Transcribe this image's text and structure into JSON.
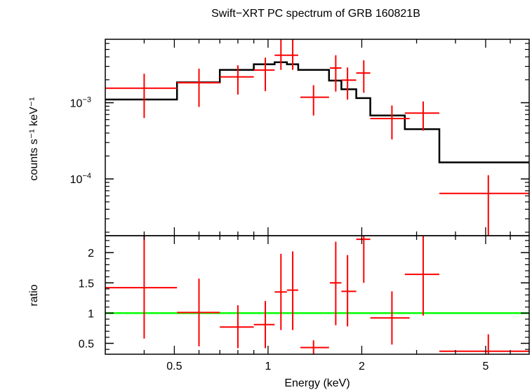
{
  "chart_data": [
    {
      "type": "scatter",
      "title": "Swift−XRT PC spectrum of GRB 160821B",
      "ylabel": "counts s⁻¹ keV⁻¹",
      "y_scale": "log",
      "x_scale": "log",
      "xlim": [
        0.3,
        6.9
      ],
      "ylim": [
        1.8e-05,
        0.0068
      ],
      "y_ticks": [
        {
          "value": 0.001,
          "base": "10",
          "exp": "−3"
        },
        {
          "value": 0.0001,
          "base": "10",
          "exp": "−4"
        }
      ],
      "grid": false,
      "series": [
        {
          "kind": "data",
          "color": "#ff0000",
          "points": [
            {
              "xlo": 0.3,
              "xhi": 0.51,
              "x": 0.4,
              "y": 0.00155,
              "ylo": 0.00063,
              "yhi": 0.0024
            },
            {
              "xlo": 0.51,
              "xhi": 0.7,
              "x": 0.6,
              "y": 0.00183,
              "ylo": 0.00088,
              "yhi": 0.0028
            },
            {
              "xlo": 0.7,
              "xhi": 0.9,
              "x": 0.8,
              "y": 0.00218,
              "ylo": 0.00128,
              "yhi": 0.0031
            },
            {
              "xlo": 0.9,
              "xhi": 1.05,
              "x": 0.98,
              "y": 0.00268,
              "ylo": 0.00142,
              "yhi": 0.0039
            },
            {
              "xlo": 1.05,
              "xhi": 1.15,
              "x": 1.1,
              "y": 0.0042,
              "ylo": 0.0027,
              "yhi": 0.0068
            },
            {
              "xlo": 1.15,
              "xhi": 1.25,
              "x": 1.2,
              "y": 0.0042,
              "ylo": 0.0027,
              "yhi": 0.0068
            },
            {
              "xlo": 1.27,
              "xhi": 1.57,
              "x": 1.4,
              "y": 0.00118,
              "ylo": 0.00068,
              "yhi": 0.0017
            },
            {
              "xlo": 1.58,
              "xhi": 1.72,
              "x": 1.65,
              "y": 0.00285,
              "ylo": 0.0014,
              "yhi": 0.0042
            },
            {
              "xlo": 1.72,
              "xhi": 1.92,
              "x": 1.8,
              "y": 0.00198,
              "ylo": 0.0011,
              "yhi": 0.0029
            },
            {
              "xlo": 1.92,
              "xhi": 2.13,
              "x": 2.03,
              "y": 0.00245,
              "ylo": 0.00135,
              "yhi": 0.0036
            },
            {
              "xlo": 2.13,
              "xhi": 2.85,
              "x": 2.5,
              "y": 0.00062,
              "ylo": 0.00033,
              "yhi": 0.00092
            },
            {
              "xlo": 2.75,
              "xhi": 3.55,
              "x": 3.15,
              "y": 0.00073,
              "ylo": 0.00043,
              "yhi": 0.00104
            },
            {
              "xlo": 3.55,
              "xhi": 6.9,
              "x": 5.1,
              "y": 6.45e-05,
              "ylo": 1.8e-05,
              "yhi": 0.000112
            }
          ]
        },
        {
          "kind": "model",
          "color": "#000000",
          "steps": [
            {
              "xlo": 0.3,
              "xhi": 0.51,
              "y": 0.0011
            },
            {
              "xlo": 0.51,
              "xhi": 0.7,
              "y": 0.00185
            },
            {
              "xlo": 0.7,
              "xhi": 0.9,
              "y": 0.0027
            },
            {
              "xlo": 0.9,
              "xhi": 1.05,
              "y": 0.0032
            },
            {
              "xlo": 1.05,
              "xhi": 1.15,
              "y": 0.0034
            },
            {
              "xlo": 1.15,
              "xhi": 1.25,
              "y": 0.0032
            },
            {
              "xlo": 1.25,
              "xhi": 1.57,
              "y": 0.0027
            },
            {
              "xlo": 1.57,
              "xhi": 1.72,
              "y": 0.00195
            },
            {
              "xlo": 1.72,
              "xhi": 1.92,
              "y": 0.0015
            },
            {
              "xlo": 1.92,
              "xhi": 2.13,
              "y": 0.00115
            },
            {
              "xlo": 2.13,
              "xhi": 2.75,
              "y": 0.00068
            },
            {
              "xlo": 2.75,
              "xhi": 3.55,
              "y": 0.00045
            },
            {
              "xlo": 3.55,
              "xhi": 6.9,
              "y": 0.000165
            }
          ]
        }
      ]
    },
    {
      "type": "scatter",
      "xlabel": "Energy (keV)",
      "ylabel": "ratio",
      "x_scale": "log",
      "xlim": [
        0.3,
        6.9
      ],
      "ylim": [
        0.32,
        2.28
      ],
      "x_ticks": [
        {
          "value": 0.5,
          "label": "0.5"
        },
        {
          "value": 1,
          "label": "1"
        },
        {
          "value": 2,
          "label": "2"
        },
        {
          "value": 5,
          "label": "5"
        }
      ],
      "y_ticks": [
        {
          "value": 0.5,
          "label": "0.5"
        },
        {
          "value": 1,
          "label": "1"
        },
        {
          "value": 1.5,
          "label": "1.5"
        },
        {
          "value": 2,
          "label": "2"
        }
      ],
      "reference_line": {
        "y": 1,
        "color": "#00ff00"
      },
      "grid": false,
      "series": [
        {
          "kind": "ratio",
          "color": "#ff0000",
          "points": [
            {
              "xlo": 0.3,
              "xhi": 0.51,
              "x": 0.4,
              "y": 1.42,
              "ylo": 0.58,
              "yhi": 2.28
            },
            {
              "xlo": 0.51,
              "xhi": 0.7,
              "x": 0.6,
              "y": 1.01,
              "ylo": 0.45,
              "yhi": 1.57
            },
            {
              "xlo": 0.7,
              "xhi": 0.9,
              "x": 0.8,
              "y": 0.77,
              "ylo": 0.42,
              "yhi": 1.13
            },
            {
              "xlo": 0.9,
              "xhi": 1.05,
              "x": 0.98,
              "y": 0.81,
              "ylo": 0.42,
              "yhi": 1.2
            },
            {
              "xlo": 1.05,
              "xhi": 1.15,
              "x": 1.1,
              "y": 1.35,
              "ylo": 0.72,
              "yhi": 1.98
            },
            {
              "xlo": 1.15,
              "xhi": 1.25,
              "x": 1.2,
              "y": 1.38,
              "ylo": 0.72,
              "yhi": 2.02
            },
            {
              "xlo": 1.27,
              "xhi": 1.57,
              "x": 1.4,
              "y": 0.43,
              "ylo": 0.32,
              "yhi": 0.55
            },
            {
              "xlo": 1.58,
              "xhi": 1.72,
              "x": 1.65,
              "y": 1.5,
              "ylo": 0.8,
              "yhi": 2.18
            },
            {
              "xlo": 1.72,
              "xhi": 1.92,
              "x": 1.8,
              "y": 1.36,
              "ylo": 0.78,
              "yhi": 1.96
            },
            {
              "xlo": 1.92,
              "xhi": 2.13,
              "x": 2.03,
              "y": 2.22,
              "ylo": 1.5,
              "yhi": 2.28
            },
            {
              "xlo": 2.13,
              "xhi": 2.85,
              "x": 2.5,
              "y": 0.92,
              "ylo": 0.48,
              "yhi": 1.36
            },
            {
              "xlo": 2.75,
              "xhi": 3.55,
              "x": 3.15,
              "y": 1.64,
              "ylo": 0.96,
              "yhi": 2.28
            },
            {
              "xlo": 3.55,
              "xhi": 6.9,
              "x": 5.1,
              "y": 0.37,
              "ylo": 0.32,
              "yhi": 0.65
            }
          ]
        }
      ]
    }
  ]
}
